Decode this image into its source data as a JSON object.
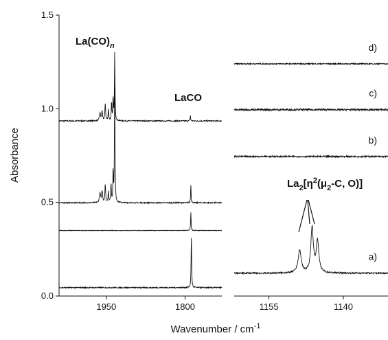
{
  "chart_data": {
    "type": "line",
    "title": "",
    "xlabel": "Wavenumber / cm",
    "xlabel_sup": "-1",
    "ylabel": "Absorbance",
    "ylim": [
      0,
      1.5
    ],
    "yticks": [
      {
        "value": 0.0,
        "label": "0.0"
      },
      {
        "value": 0.5,
        "label": "0.5"
      },
      {
        "value": 1.0,
        "label": "1.0"
      },
      {
        "value": 1.5,
        "label": "1.5"
      }
    ],
    "grid": false,
    "panels": [
      {
        "region": "left",
        "xlim": [
          2040,
          1730
        ],
        "xticks": [
          {
            "value": 1950,
            "label": "1950"
          },
          {
            "value": 1800,
            "label": "1800"
          }
        ],
        "series": [
          {
            "baseline": 0.935,
            "noise": 0.003,
            "peaks": [
              {
                "x": 1934,
                "h": 0.37,
                "w": 0.9
              },
              {
                "x": 1937,
                "h": 0.12,
                "w": 0.9
              },
              {
                "x": 1940,
                "h": 0.1,
                "w": 1.0
              },
              {
                "x": 1946,
                "h": 0.06,
                "w": 1.0
              },
              {
                "x": 1952,
                "h": 0.09,
                "w": 1.2
              },
              {
                "x": 1958,
                "h": 0.05,
                "w": 1.5
              },
              {
                "x": 1962,
                "h": 0.04,
                "w": 2.0
              },
              {
                "x": 1790,
                "h": 0.03,
                "w": 0.8
              }
            ]
          },
          {
            "baseline": 0.498,
            "noise": 0.003,
            "peaks": [
              {
                "x": 1934,
                "h": 0.66,
                "w": 0.9
              },
              {
                "x": 1937,
                "h": 0.17,
                "w": 0.9
              },
              {
                "x": 1941,
                "h": 0.1,
                "w": 1.0
              },
              {
                "x": 1946,
                "h": 0.06,
                "w": 1.0
              },
              {
                "x": 1952,
                "h": 0.1,
                "w": 1.2
              },
              {
                "x": 1958,
                "h": 0.06,
                "w": 1.5
              },
              {
                "x": 1962,
                "h": 0.05,
                "w": 2.0
              },
              {
                "x": 1789,
                "h": 0.1,
                "w": 0.8
              }
            ]
          },
          {
            "baseline": 0.35,
            "noise": 0.0015,
            "peaks": [
              {
                "x": 1789,
                "h": 0.1,
                "w": 0.8
              }
            ]
          },
          {
            "baseline": 0.045,
            "noise": 0.003,
            "peaks": [
              {
                "x": 1788,
                "h": 0.28,
                "w": 0.9
              }
            ]
          }
        ]
      },
      {
        "region": "right",
        "xlim": [
          1162,
          1131
        ],
        "xticks": [
          {
            "value": 1155,
            "label": "1155"
          },
          {
            "value": 1140,
            "label": "1140"
          }
        ],
        "series": [
          {
            "label": "d)",
            "baseline": 1.24,
            "noise": 0.003,
            "peaks": []
          },
          {
            "label": "c)",
            "baseline": 0.995,
            "noise": 0.005,
            "peaks": []
          },
          {
            "label": "b)",
            "baseline": 0.745,
            "noise": 0.004,
            "peaks": []
          },
          {
            "label": "a)",
            "baseline": 0.122,
            "noise": 0.004,
            "peaks": [
              {
                "x": 1148.8,
                "h": 0.12,
                "w": 0.55
              },
              {
                "x": 1146.3,
                "h": 0.24,
                "w": 0.45
              },
              {
                "x": 1145.2,
                "h": 0.17,
                "w": 0.45
              }
            ]
          }
        ]
      }
    ],
    "annotations": {
      "lacon_main": "La(CO)",
      "lacon_sub": "n",
      "laco": "LaCO",
      "la2_main": "La",
      "la2_sub": "2",
      "la2_mid1": "[η",
      "la2_sup": "2",
      "la2_mid2": "(μ",
      "la2_sub2": "2",
      "la2_tail": "-C, O)]"
    }
  }
}
